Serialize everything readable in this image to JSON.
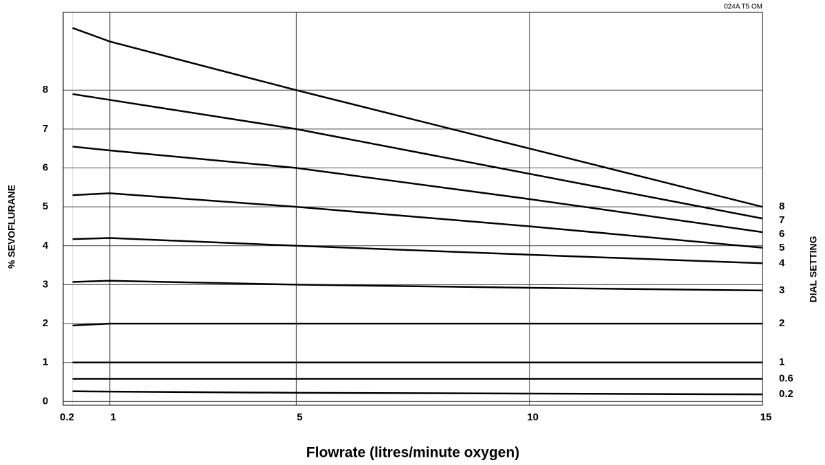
{
  "chart_data": {
    "type": "line",
    "note": "024A T5 OM",
    "xlabel": "Flowrate (litres/minute oxygen)",
    "ylabel": "% SEVOFLURANE",
    "y2label": "DIAL SETTING",
    "x": [
      0.2,
      1,
      5,
      10,
      15
    ],
    "xlim": [
      0,
      15
    ],
    "xticks": [
      0.2,
      1,
      5,
      10,
      15
    ],
    "ylim": [
      -0.1,
      10
    ],
    "yticks": [
      0,
      1,
      2,
      3,
      4,
      5,
      6,
      7,
      8
    ],
    "grid": true,
    "color": "#000000",
    "series": [
      {
        "name": "8",
        "values": [
          9.6,
          9.25,
          8.0,
          6.5,
          5.0
        ]
      },
      {
        "name": "7",
        "values": [
          7.9,
          7.75,
          7.0,
          5.85,
          4.7
        ]
      },
      {
        "name": "6",
        "values": [
          6.55,
          6.45,
          6.0,
          5.2,
          4.35
        ]
      },
      {
        "name": "5",
        "values": [
          5.3,
          5.35,
          5.0,
          4.5,
          3.95
        ]
      },
      {
        "name": "4",
        "values": [
          4.17,
          4.2,
          4.0,
          3.77,
          3.55
        ]
      },
      {
        "name": "3",
        "values": [
          3.07,
          3.1,
          3.0,
          2.92,
          2.85
        ]
      },
      {
        "name": "2",
        "values": [
          1.95,
          2.0,
          2.0,
          2.0,
          2.0
        ]
      },
      {
        "name": "1",
        "values": [
          1.0,
          1.0,
          1.0,
          1.0,
          1.0
        ]
      },
      {
        "name": "0.6",
        "values": [
          0.58,
          0.58,
          0.58,
          0.58,
          0.58
        ]
      },
      {
        "name": "0.2",
        "values": [
          0.26,
          0.25,
          0.22,
          0.2,
          0.18
        ]
      }
    ]
  }
}
